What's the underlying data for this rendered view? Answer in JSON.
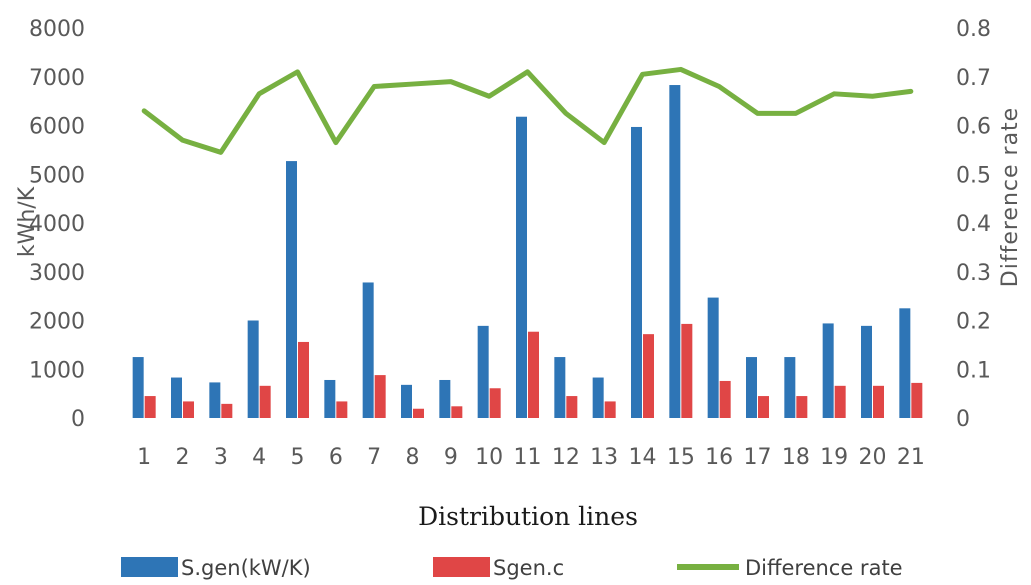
{
  "chart_data": {
    "type": "bar",
    "title": "",
    "xlabel": "Distribution lines",
    "ylabel": "kWh/K",
    "y2label": "Difference rate",
    "categories": [
      "1",
      "2",
      "3",
      "4",
      "5",
      "6",
      "7",
      "8",
      "9",
      "10",
      "11",
      "12",
      "13",
      "14",
      "15",
      "16",
      "17",
      "18",
      "19",
      "20",
      "21"
    ],
    "ylim": [
      0,
      8000
    ],
    "yticks": [
      "0",
      "1000",
      "2000",
      "3000",
      "4000",
      "5000",
      "6000",
      "7000",
      "8000"
    ],
    "y2lim": [
      0,
      0.8
    ],
    "y2ticks": [
      "0",
      "0.1",
      "0.2",
      "0.3",
      "0.4",
      "0.5",
      "0.6",
      "0.7",
      "0.8"
    ],
    "grid": false,
    "legend_position": "bottom",
    "series": [
      {
        "name": "S.gen(kW/K)",
        "type": "bar",
        "axis": "left",
        "color": "#2e75b6",
        "values": [
          1250,
          830,
          730,
          2000,
          5270,
          780,
          2780,
          680,
          780,
          1890,
          6180,
          1250,
          830,
          5970,
          6830,
          2470,
          1250,
          1250,
          1940,
          1890,
          2250
        ]
      },
      {
        "name": "Sgen.c",
        "type": "bar",
        "axis": "left",
        "color": "#e04646",
        "values": [
          450,
          340,
          290,
          660,
          1560,
          340,
          880,
          190,
          240,
          610,
          1770,
          450,
          340,
          1720,
          1930,
          760,
          450,
          450,
          660,
          660,
          720
        ]
      },
      {
        "name": "Difference rate",
        "type": "line",
        "axis": "right",
        "color": "#77b041",
        "values": [
          0.63,
          0.57,
          0.545,
          0.665,
          0.71,
          0.565,
          0.68,
          0.685,
          0.69,
          0.66,
          0.71,
          0.625,
          0.565,
          0.705,
          0.715,
          0.68,
          0.625,
          0.625,
          0.665,
          0.66,
          0.67
        ]
      }
    ]
  }
}
